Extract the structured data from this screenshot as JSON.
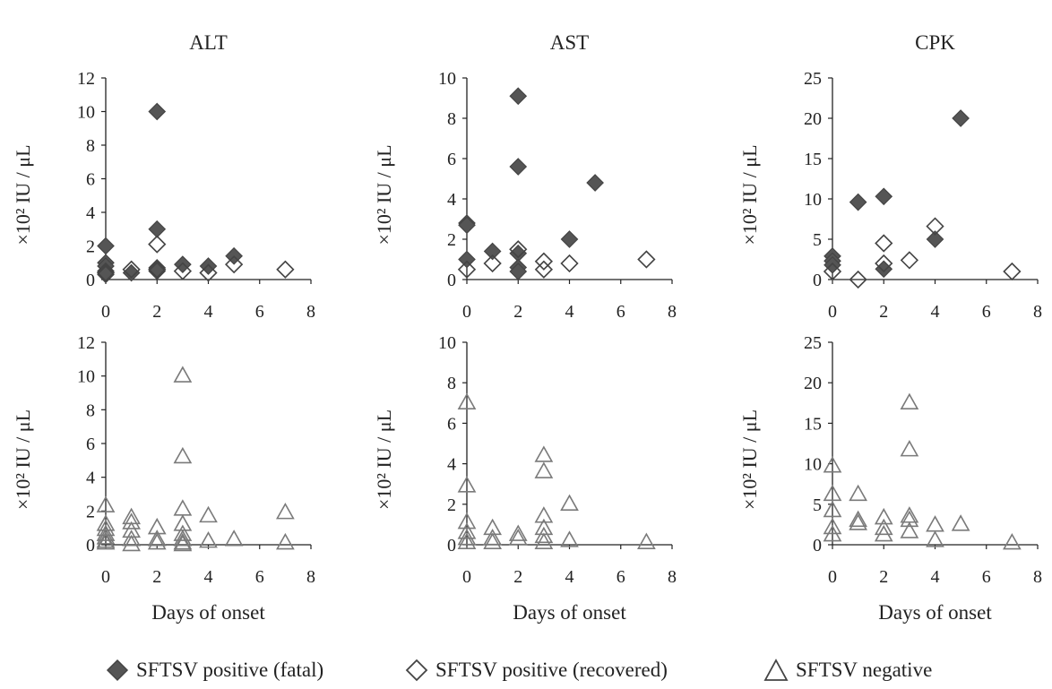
{
  "chart_data": [
    {
      "type": "scatter",
      "title": "ALT",
      "xlabel": "",
      "ylabel": "×10² IU / μL",
      "xlim": [
        0,
        8
      ],
      "ylim": [
        0,
        12
      ],
      "xticks": [
        0,
        2,
        4,
        6,
        8
      ],
      "yticks": [
        0,
        2,
        4,
        6,
        8,
        10,
        12
      ],
      "grid": false,
      "series": [
        {
          "name": "SFTSV positive (fatal)",
          "marker": "diamond-filled",
          "points": [
            [
              0,
              2.0
            ],
            [
              0,
              1.0
            ],
            [
              0,
              0.8
            ],
            [
              0,
              0.5
            ],
            [
              0,
              0.3
            ],
            [
              1,
              0.4
            ],
            [
              2,
              10.0
            ],
            [
              2,
              3.0
            ],
            [
              2,
              0.7
            ],
            [
              2,
              0.5
            ],
            [
              3,
              0.9
            ],
            [
              4,
              0.8
            ],
            [
              5,
              1.4
            ]
          ]
        },
        {
          "name": "SFTSV positive (recovered)",
          "marker": "diamond-open",
          "points": [
            [
              0,
              0.4
            ],
            [
              1,
              0.6
            ],
            [
              2,
              2.1
            ],
            [
              2,
              0.6
            ],
            [
              3,
              0.5
            ],
            [
              4,
              0.4
            ],
            [
              5,
              0.9
            ],
            [
              7,
              0.6
            ]
          ]
        }
      ]
    },
    {
      "type": "scatter",
      "title": "AST",
      "xlabel": "",
      "ylabel": "×10² IU / μL",
      "xlim": [
        0,
        8
      ],
      "ylim": [
        0,
        10
      ],
      "xticks": [
        0,
        2,
        4,
        6,
        8
      ],
      "yticks": [
        0,
        2,
        4,
        6,
        8,
        10
      ],
      "grid": false,
      "series": [
        {
          "name": "SFTSV positive (fatal)",
          "marker": "diamond-filled",
          "points": [
            [
              0,
              2.8
            ],
            [
              0,
              2.7
            ],
            [
              0,
              1.0
            ],
            [
              1,
              1.4
            ],
            [
              2,
              9.1
            ],
            [
              2,
              5.6
            ],
            [
              2,
              1.3
            ],
            [
              2,
              0.6
            ],
            [
              2,
              0.4
            ],
            [
              4,
              2.0
            ],
            [
              5,
              4.8
            ]
          ]
        },
        {
          "name": "SFTSV positive (recovered)",
          "marker": "diamond-open",
          "points": [
            [
              0,
              0.5
            ],
            [
              1,
              0.8
            ],
            [
              2,
              1.5
            ],
            [
              3,
              0.9
            ],
            [
              3,
              0.5
            ],
            [
              4,
              0.8
            ],
            [
              7,
              1.0
            ]
          ]
        }
      ]
    },
    {
      "type": "scatter",
      "title": "CPK",
      "xlabel": "",
      "ylabel": "×10² IU / μL",
      "xlim": [
        0,
        8
      ],
      "ylim": [
        0,
        25
      ],
      "xticks": [
        0,
        2,
        4,
        6,
        8
      ],
      "yticks": [
        0,
        5,
        10,
        15,
        20,
        25
      ],
      "grid": false,
      "series": [
        {
          "name": "SFTSV positive (fatal)",
          "marker": "diamond-filled",
          "points": [
            [
              0,
              2.9
            ],
            [
              0,
              2.3
            ],
            [
              0,
              1.8
            ],
            [
              1,
              9.6
            ],
            [
              2,
              10.3
            ],
            [
              2,
              1.3
            ],
            [
              4,
              5.0
            ],
            [
              5,
              20.0
            ]
          ]
        },
        {
          "name": "SFTSV positive (recovered)",
          "marker": "diamond-open",
          "points": [
            [
              0,
              1.0
            ],
            [
              1,
              0.0
            ],
            [
              2,
              4.5
            ],
            [
              2,
              2.0
            ],
            [
              3,
              2.4
            ],
            [
              4,
              6.6
            ],
            [
              7,
              1.0
            ]
          ]
        }
      ]
    },
    {
      "type": "scatter",
      "title": "",
      "xlabel": "Days of onset",
      "ylabel": "×10² IU / μL",
      "xlim": [
        0,
        8
      ],
      "ylim": [
        0,
        12
      ],
      "xticks": [
        0,
        2,
        4,
        6,
        8
      ],
      "yticks": [
        0,
        2,
        4,
        6,
        8,
        10,
        12
      ],
      "grid": false,
      "series": [
        {
          "name": "SFTSV negative",
          "marker": "triangle-open",
          "points": [
            [
              0,
              2.3
            ],
            [
              0,
              1.2
            ],
            [
              0,
              0.9
            ],
            [
              0,
              0.6
            ],
            [
              0,
              0.4
            ],
            [
              0,
              0.2
            ],
            [
              0,
              0.1
            ],
            [
              1,
              1.6
            ],
            [
              1,
              1.3
            ],
            [
              1,
              0.8
            ],
            [
              1,
              0.3
            ],
            [
              1,
              0.0
            ],
            [
              2,
              1.0
            ],
            [
              2,
              0.3
            ],
            [
              2,
              0.1
            ],
            [
              3,
              10.0
            ],
            [
              3,
              5.2
            ],
            [
              3,
              2.1
            ],
            [
              3,
              1.2
            ],
            [
              3,
              0.6
            ],
            [
              3,
              0.3
            ],
            [
              3,
              0.1
            ],
            [
              3,
              0.0
            ],
            [
              4,
              1.7
            ],
            [
              4,
              0.2
            ],
            [
              5,
              0.3
            ],
            [
              7,
              1.9
            ],
            [
              7,
              0.1
            ]
          ]
        }
      ]
    },
    {
      "type": "scatter",
      "title": "",
      "xlabel": "Days of onset",
      "ylabel": "×10² IU / μL",
      "xlim": [
        0,
        8
      ],
      "ylim": [
        0,
        10
      ],
      "xticks": [
        0,
        2,
        4,
        6,
        8
      ],
      "yticks": [
        0,
        2,
        4,
        6,
        8,
        10
      ],
      "grid": false,
      "series": [
        {
          "name": "SFTSV negative",
          "marker": "triangle-open",
          "points": [
            [
              0,
              7.0
            ],
            [
              0,
              2.9
            ],
            [
              0,
              1.1
            ],
            [
              0,
              0.6
            ],
            [
              0,
              0.3
            ],
            [
              0,
              0.1
            ],
            [
              1,
              0.8
            ],
            [
              1,
              0.3
            ],
            [
              1,
              0.1
            ],
            [
              2,
              0.5
            ],
            [
              2,
              0.3
            ],
            [
              3,
              4.4
            ],
            [
              3,
              3.6
            ],
            [
              3,
              1.4
            ],
            [
              3,
              0.8
            ],
            [
              3,
              0.4
            ],
            [
              3,
              0.1
            ],
            [
              4,
              2.0
            ],
            [
              4,
              0.2
            ],
            [
              7,
              0.1
            ]
          ]
        }
      ]
    },
    {
      "type": "scatter",
      "title": "",
      "xlabel": "Days of onset",
      "ylabel": "×10² IU / μL",
      "xlim": [
        0,
        8
      ],
      "ylim": [
        0,
        25
      ],
      "xticks": [
        0,
        2,
        4,
        6,
        8
      ],
      "yticks": [
        0,
        5,
        10,
        15,
        20,
        25
      ],
      "grid": false,
      "series": [
        {
          "name": "SFTSV negative",
          "marker": "triangle-open",
          "points": [
            [
              0,
              9.7
            ],
            [
              0,
              6.2
            ],
            [
              0,
              4.2
            ],
            [
              0,
              2.1
            ],
            [
              0,
              1.2
            ],
            [
              1,
              6.2
            ],
            [
              1,
              3.0
            ],
            [
              1,
              2.6
            ],
            [
              2,
              3.3
            ],
            [
              2,
              2.0
            ],
            [
              2,
              1.2
            ],
            [
              3,
              17.5
            ],
            [
              3,
              11.7
            ],
            [
              3,
              3.5
            ],
            [
              3,
              3.0
            ],
            [
              3,
              1.6
            ],
            [
              4,
              2.4
            ],
            [
              4,
              0.5
            ],
            [
              5,
              2.5
            ],
            [
              7,
              0.2
            ]
          ]
        }
      ]
    }
  ],
  "legend": {
    "position": "bottom",
    "items": [
      {
        "label": "SFTSV positive (fatal)",
        "marker": "diamond-filled"
      },
      {
        "label": "SFTSV positive (recovered)",
        "marker": "diamond-open"
      },
      {
        "label": "SFTSV negative",
        "marker": "triangle-open"
      }
    ]
  },
  "colors": {
    "axis": "#222222",
    "filled_marker": "#555555",
    "open_marker_stroke": "#444444",
    "triangle_stroke": "#7a7a7a"
  }
}
